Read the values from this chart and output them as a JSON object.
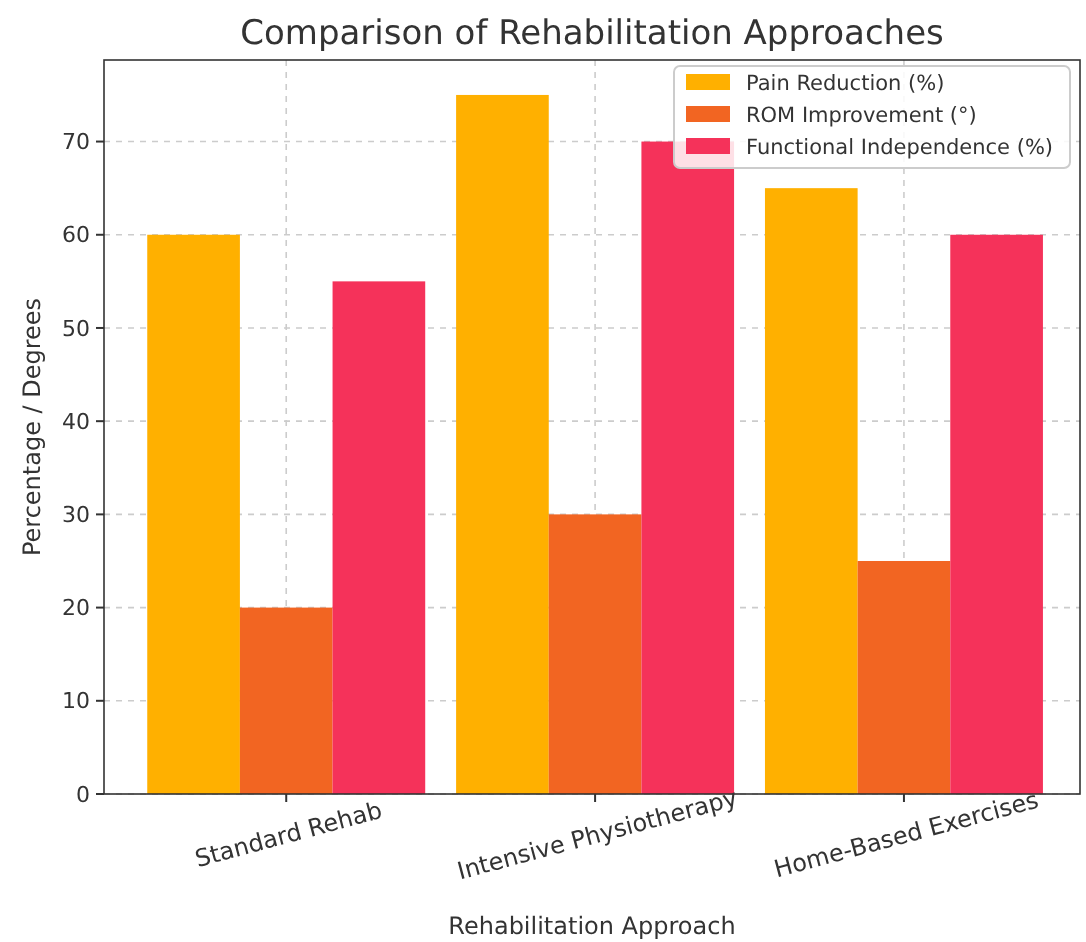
{
  "chart_data": {
    "type": "bar",
    "title": "Comparison of Rehabilitation Approaches",
    "xlabel": "Rehabilitation Approach",
    "ylabel": "Percentage / Degrees",
    "categories": [
      "Standard Rehab",
      "Intensive Physiotherapy",
      "Home-Based Exercises"
    ],
    "series": [
      {
        "name": "Pain Reduction (%)",
        "color": "#ffb000",
        "values": [
          60,
          75,
          65
        ]
      },
      {
        "name": "ROM Improvement (°)",
        "color": "#f26522",
        "values": [
          20,
          30,
          25
        ]
      },
      {
        "name": "Functional Independence (%)",
        "color": "#f5325a",
        "values": [
          55,
          70,
          60
        ]
      }
    ],
    "ylim": [
      0,
      78.75
    ],
    "yticks": [
      0,
      10,
      20,
      30,
      40,
      50,
      60,
      70
    ],
    "grid": true,
    "legend": "top right"
  }
}
